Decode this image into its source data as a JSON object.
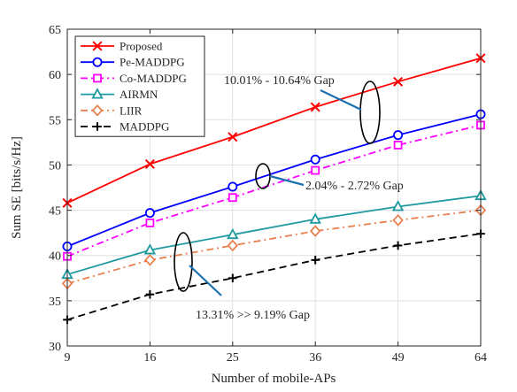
{
  "chart_data": {
    "type": "line",
    "title": "",
    "xlabel": "Number of mobile-APs",
    "ylabel": "Sum SE [bits/s/Hz]",
    "x_categories": [
      "9",
      "16",
      "25",
      "36",
      "49",
      "64"
    ],
    "ylim": [
      30,
      65
    ],
    "yticks": [
      30,
      35,
      40,
      45,
      50,
      55,
      60,
      65
    ],
    "grid": true,
    "legend_position": "top-left",
    "series": [
      {
        "name": "Proposed",
        "color": "#ff0000",
        "line_style": "solid",
        "marker": "x",
        "values": [
          45.8,
          50.1,
          53.1,
          56.4,
          59.2,
          61.8
        ]
      },
      {
        "name": "Pe-MADDPG",
        "color": "#0000ff",
        "line_style": "solid",
        "marker": "circle",
        "values": [
          41.0,
          44.7,
          47.6,
          50.6,
          53.3,
          55.6
        ]
      },
      {
        "name": "Co-MADDPG",
        "color": "#ff00ff",
        "line_style": "dashdot",
        "marker": "square",
        "values": [
          39.9,
          43.6,
          46.4,
          49.4,
          52.2,
          54.4
        ]
      },
      {
        "name": "AIRMN",
        "color": "#1f9aa0",
        "line_style": "solid",
        "marker": "triangle",
        "values": [
          37.9,
          40.6,
          42.3,
          44.0,
          45.4,
          46.6
        ]
      },
      {
        "name": "LIIR",
        "color": "#e98050",
        "line_style": "dashdot",
        "marker": "diamond",
        "values": [
          36.9,
          39.5,
          41.1,
          42.7,
          43.9,
          45.0
        ]
      },
      {
        "name": "MADDPG",
        "color": "#000000",
        "line_style": "dashed",
        "marker": "plus",
        "values": [
          32.9,
          35.7,
          37.5,
          39.5,
          41.1,
          42.4
        ]
      }
    ],
    "annotations": [
      {
        "text": "10.01% - 10.64% Gap"
      },
      {
        "text": "2.04% - 2.72% Gap"
      },
      {
        "text": "13.31% >> 9.19% Gap"
      }
    ]
  }
}
